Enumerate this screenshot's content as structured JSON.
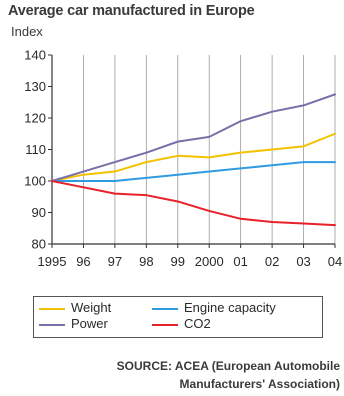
{
  "chart_data": {
    "type": "line",
    "title": "Average car manufactured in Europe",
    "ylabel": "Index",
    "xlabel": "",
    "categories": [
      "1995",
      "96",
      "97",
      "98",
      "99",
      "2000",
      "01",
      "02",
      "03",
      "04"
    ],
    "ylim": [
      80,
      140
    ],
    "yticks": [
      80,
      90,
      100,
      110,
      120,
      130,
      140
    ],
    "grid": "vertical",
    "legend_position": "bottom",
    "series": [
      {
        "name": "Weight",
        "color": "#f2c200",
        "values": [
          100,
          102,
          103,
          106,
          108,
          107.5,
          109,
          110,
          111,
          115
        ]
      },
      {
        "name": "Power",
        "color": "#7b6fa8",
        "values": [
          100,
          103,
          106,
          109,
          112.5,
          114,
          119,
          122,
          124,
          127.5
        ]
      },
      {
        "name": "Engine capacity",
        "color": "#2f9be0",
        "values": [
          100,
          100,
          100,
          101,
          102,
          103,
          104,
          105,
          106,
          106
        ]
      },
      {
        "name": "CO2",
        "color": "#e8202a",
        "values": [
          100,
          98,
          96,
          95.5,
          93.5,
          90.5,
          88,
          87,
          86.5,
          86
        ]
      }
    ],
    "source": "SOURCE:  ACEA (European Automobile Manufacturers'  Association)"
  }
}
